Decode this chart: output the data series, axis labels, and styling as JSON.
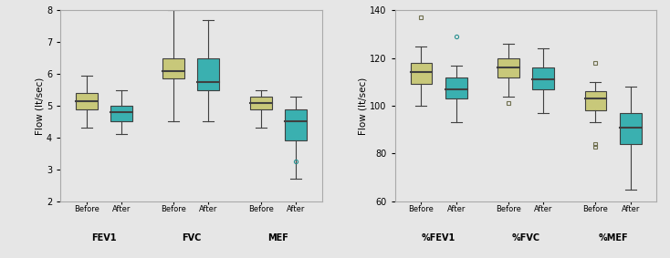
{
  "chart1": {
    "ylabel": "Flow (lt/sec)",
    "ylim": [
      2,
      8
    ],
    "yticks": [
      2,
      3,
      4,
      5,
      6,
      7,
      8
    ],
    "groups": [
      "FEV1",
      "FVC",
      "MEF"
    ],
    "boxes": [
      {
        "label": "Before",
        "group": "FEV1",
        "color": "#c8c87a",
        "whislo": 4.3,
        "q1": 4.9,
        "med": 5.15,
        "q3": 5.4,
        "whishi": 5.95,
        "fliers": []
      },
      {
        "label": "After",
        "group": "FEV1",
        "color": "#3ab0b0",
        "whislo": 4.1,
        "q1": 4.5,
        "med": 4.8,
        "q3": 5.0,
        "whishi": 5.5,
        "fliers": []
      },
      {
        "label": "Before",
        "group": "FVC",
        "color": "#c8c87a",
        "whislo": 4.5,
        "q1": 5.85,
        "med": 6.1,
        "q3": 6.5,
        "whishi": 8.0,
        "fliers": []
      },
      {
        "label": "After",
        "group": "FVC",
        "color": "#3ab0b0",
        "whislo": 4.5,
        "q1": 5.5,
        "med": 5.75,
        "q3": 6.5,
        "whishi": 7.7,
        "fliers": []
      },
      {
        "label": "Before",
        "group": "MEF",
        "color": "#c8c87a",
        "whislo": 4.3,
        "q1": 4.9,
        "med": 5.1,
        "q3": 5.3,
        "whishi": 5.5,
        "fliers": []
      },
      {
        "label": "After",
        "group": "MEF",
        "color": "#3ab0b0",
        "whislo": 2.7,
        "q1": 3.9,
        "med": 4.5,
        "q3": 4.9,
        "whishi": 5.3,
        "fliers": [
          3.25
        ]
      }
    ]
  },
  "chart2": {
    "ylabel": "Flow (lt/sec)",
    "ylim": [
      60,
      140
    ],
    "yticks": [
      60,
      80,
      100,
      120,
      140
    ],
    "groups": [
      "%FEV1",
      "%FVC",
      "%MEF"
    ],
    "boxes": [
      {
        "label": "Before",
        "group": "%FEV1",
        "color": "#c8c87a",
        "whislo": 100,
        "q1": 109,
        "med": 114,
        "q3": 118,
        "whishi": 125,
        "fliers": [
          137
        ]
      },
      {
        "label": "After",
        "group": "%FEV1",
        "color": "#3ab0b0",
        "whislo": 93,
        "q1": 103,
        "med": 107,
        "q3": 112,
        "whishi": 117,
        "fliers": [
          129
        ]
      },
      {
        "label": "Before",
        "group": "%FVC",
        "color": "#c8c87a",
        "whislo": 104,
        "q1": 112,
        "med": 116,
        "q3": 120,
        "whishi": 126,
        "fliers": [
          101
        ]
      },
      {
        "label": "After",
        "group": "%FVC",
        "color": "#3ab0b0",
        "whislo": 97,
        "q1": 107,
        "med": 111,
        "q3": 116,
        "whishi": 124,
        "fliers": []
      },
      {
        "label": "Before",
        "group": "%MEF",
        "color": "#c8c87a",
        "whislo": 93,
        "q1": 98,
        "med": 103,
        "q3": 106,
        "whishi": 110,
        "fliers": [
          118,
          84,
          83
        ]
      },
      {
        "label": "After",
        "group": "%MEF",
        "color": "#3ab0b0",
        "whislo": 65,
        "q1": 84,
        "med": 91,
        "q3": 97,
        "whishi": 108,
        "fliers": []
      }
    ]
  },
  "bg_color": "#e6e6e6",
  "box_width": 0.5,
  "linecolor": "#404040",
  "outlier_color_olive": "#707050",
  "outlier_color_teal": "#2a9090"
}
